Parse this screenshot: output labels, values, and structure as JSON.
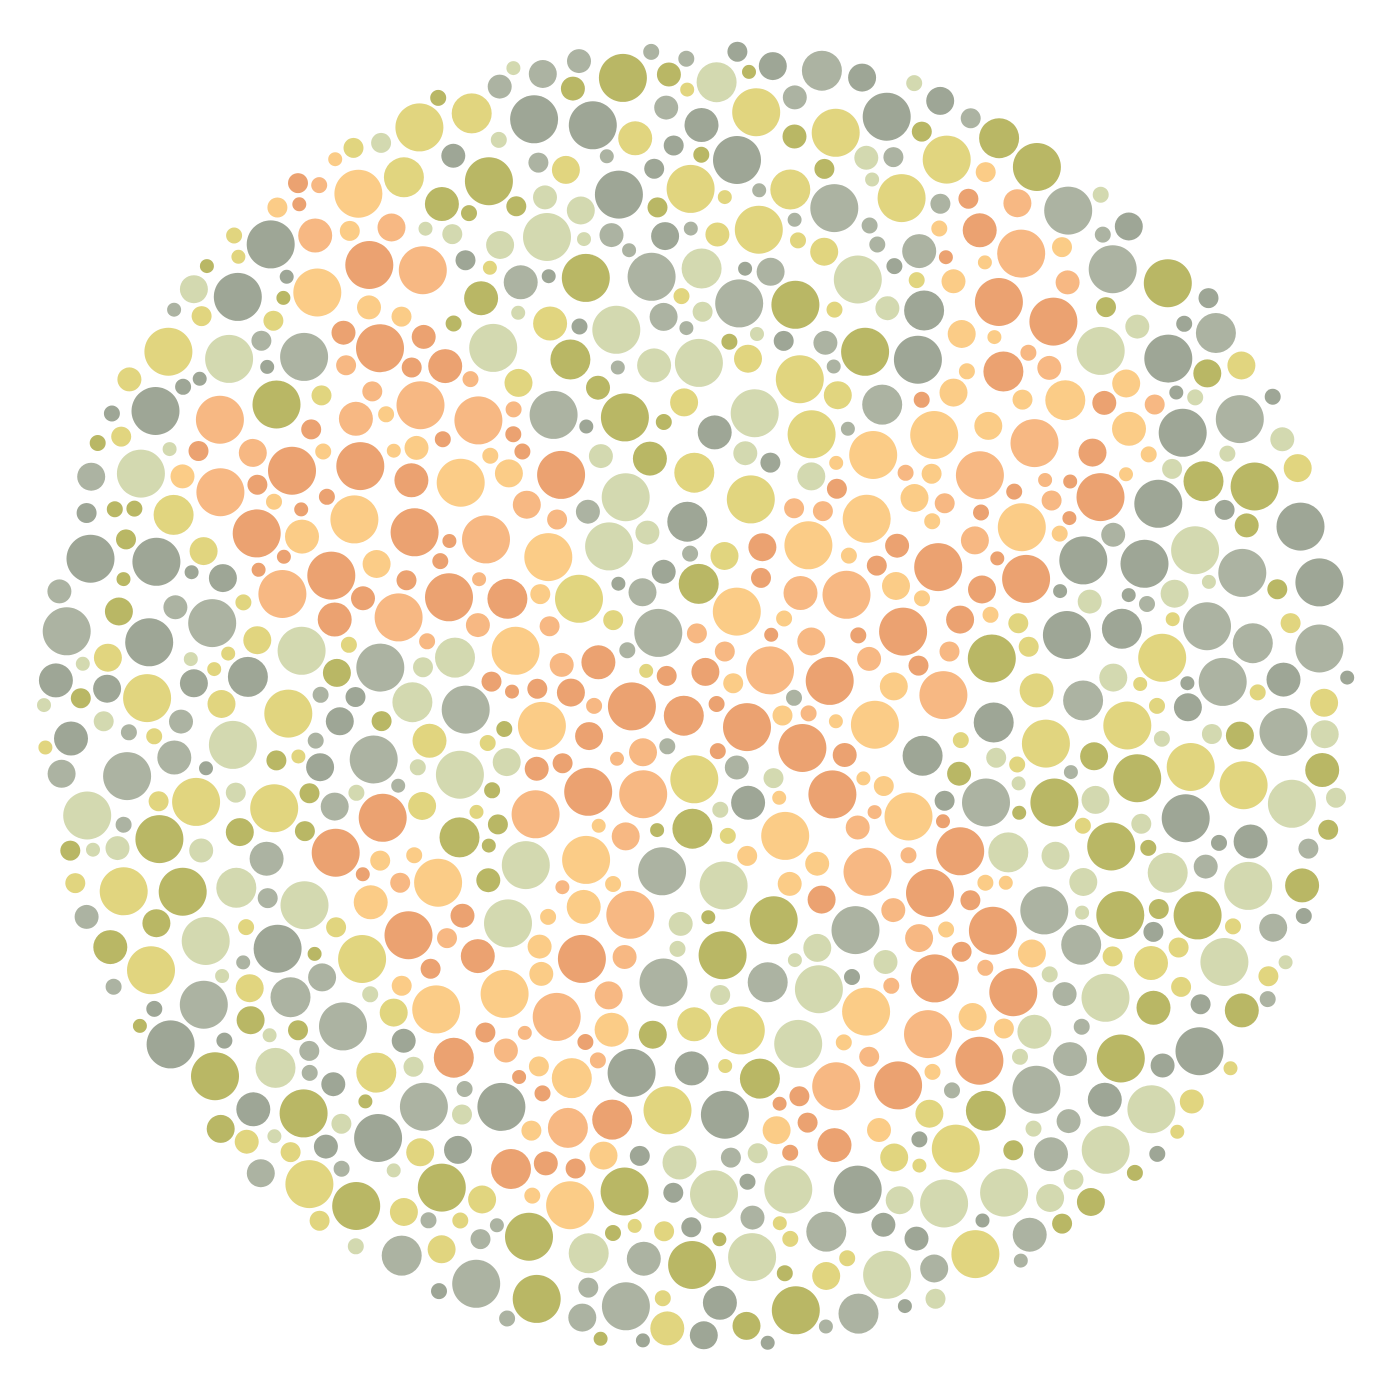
{
  "plate": {
    "type": "color-vision-test-plate",
    "colors": {
      "background": "#ffffff",
      "figure": [
        "#eba271",
        "#f7b883",
        "#fbcc87"
      ],
      "ground": [
        "#9ea696",
        "#acb3a2",
        "#b9b765",
        "#d3d9b0",
        "#e1d57f"
      ]
    }
  }
}
